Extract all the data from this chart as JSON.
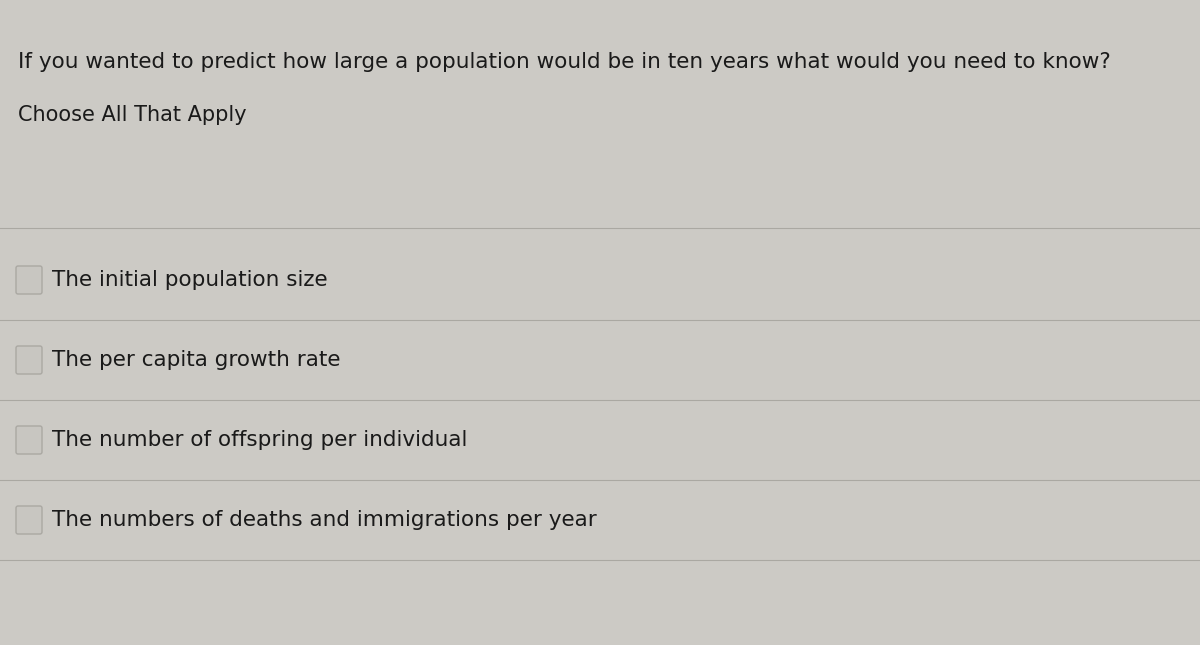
{
  "title": "If you wanted to predict how large a population would be in ten years what would you need to know?",
  "subtitle": "Choose All That Apply",
  "options": [
    "The initial population size",
    "The per capita growth rate",
    "The number of offspring per individual",
    "The numbers of deaths and immigrations per year"
  ],
  "bg_color": "#cccac5",
  "text_color": "#1a1a1a",
  "title_fontsize": 15.5,
  "subtitle_fontsize": 15,
  "option_fontsize": 15.5,
  "line_color": "#aaa8a2",
  "checkbox_edge_color": "#aaa8a2",
  "checkbox_face_color": "#c8c6c1"
}
